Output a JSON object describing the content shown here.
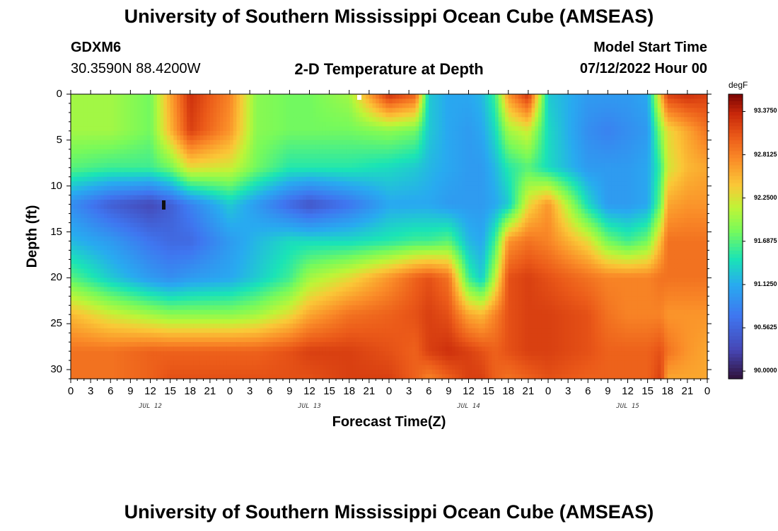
{
  "header": {
    "title_top": "University of Southern Mississippi Ocean Cube (AMSEAS)",
    "title_bottom": "University of Southern Mississippi Ocean Cube (AMSEAS)",
    "station_id": "GDXM6",
    "station_coords": "30.3590N  88.4200W",
    "model_start_label": "Model Start Time",
    "model_start_value": "07/12/2022 Hour 00"
  },
  "chart_data": {
    "type": "heatmap",
    "title": "2-D Temperature at Depth",
    "xlabel": "Forecast Time(Z)",
    "ylabel": "Depth (ft)",
    "units": "degF",
    "x_range_hours": [
      0,
      96
    ],
    "y_range_ft": [
      0,
      31
    ],
    "x_tick_labels": [
      "0",
      "3",
      "6",
      "9",
      "12",
      "15",
      "18",
      "21",
      "0",
      "3",
      "6",
      "9",
      "12",
      "15",
      "18",
      "21",
      "0",
      "3",
      "6",
      "9",
      "12",
      "15",
      "18",
      "21",
      "0",
      "3",
      "6",
      "9",
      "12",
      "15",
      "18",
      "21",
      "0"
    ],
    "y_tick_values": [
      0,
      5,
      10,
      15,
      20,
      25,
      30
    ],
    "y_tick_labels": [
      "0",
      "5",
      "10",
      "15",
      "20",
      "25",
      "30"
    ],
    "day_labels": [
      {
        "label": "JUL 12",
        "hour": 12
      },
      {
        "label": "JUL 13",
        "hour": 36
      },
      {
        "label": "JUL 14",
        "hour": 60
      },
      {
        "label": "JUL 15",
        "hour": 84
      }
    ],
    "colorbar": {
      "min": 89.9,
      "max": 93.6,
      "tick_labels": [
        "93.3750",
        "92.8125",
        "92.2500",
        "91.6875",
        "91.1250",
        "90.5625",
        "90.0000"
      ],
      "tick_values": [
        93.375,
        92.8125,
        92.25,
        91.6875,
        91.125,
        90.5625,
        90.0
      ]
    },
    "depths_ft": [
      0,
      4,
      8,
      12,
      16,
      20,
      24,
      28,
      31
    ],
    "times_h": [
      0,
      6,
      12,
      15,
      18,
      24,
      28,
      33,
      36,
      42,
      48,
      52,
      54,
      57,
      60,
      62,
      64,
      66,
      69,
      72,
      78,
      81,
      84,
      87,
      89,
      90,
      93,
      96
    ],
    "temperature_degF": [
      [
        92.0,
        92.0,
        91.8,
        92.6,
        93.3,
        92.8,
        91.9,
        91.8,
        91.8,
        92.0,
        93.3,
        93.0,
        91.3,
        91.1,
        91.1,
        91.2,
        91.6,
        92.7,
        93.3,
        91.3,
        91.0,
        91.0,
        91.0,
        91.1,
        92.5,
        93.2,
        93.3,
        93.2
      ],
      [
        92.0,
        92.0,
        91.8,
        92.5,
        93.2,
        92.7,
        91.9,
        91.8,
        91.8,
        91.8,
        91.9,
        91.8,
        91.3,
        91.1,
        91.0,
        91.1,
        91.4,
        92.0,
        92.2,
        91.4,
        90.9,
        90.8,
        90.9,
        91.0,
        91.9,
        92.3,
        92.6,
        92.9
      ],
      [
        91.7,
        91.6,
        91.6,
        91.8,
        92.3,
        92.2,
        91.8,
        91.5,
        91.5,
        91.5,
        91.4,
        91.3,
        91.2,
        91.1,
        91.0,
        91.0,
        91.2,
        91.5,
        91.7,
        91.4,
        91.0,
        91.0,
        91.0,
        91.1,
        91.6,
        92.2,
        92.5,
        92.6
      ],
      [
        90.9,
        90.5,
        90.3,
        90.5,
        90.8,
        91.3,
        91.0,
        90.6,
        90.4,
        90.7,
        91.1,
        91.1,
        91.1,
        91.0,
        91.0,
        91.0,
        91.1,
        91.3,
        92.3,
        92.7,
        91.4,
        91.0,
        91.0,
        91.1,
        91.8,
        92.6,
        92.7,
        92.7
      ],
      [
        91.2,
        91.0,
        90.7,
        90.6,
        90.6,
        91.0,
        91.2,
        91.4,
        91.4,
        91.4,
        91.5,
        91.6,
        91.6,
        91.7,
        91.2,
        91.1,
        91.6,
        92.7,
        92.9,
        92.8,
        92.3,
        91.8,
        91.6,
        91.8,
        92.5,
        92.9,
        92.9,
        92.9
      ],
      [
        91.7,
        91.3,
        91.0,
        90.9,
        91.0,
        91.1,
        91.3,
        91.6,
        92.0,
        92.3,
        92.7,
        93.0,
        93.1,
        92.9,
        91.6,
        91.3,
        92.1,
        93.1,
        93.2,
        93.1,
        92.9,
        92.8,
        92.8,
        92.8,
        92.9,
        92.9,
        92.9,
        92.9
      ],
      [
        92.5,
        92.2,
        92.0,
        91.9,
        91.9,
        91.9,
        92.0,
        92.3,
        92.6,
        92.9,
        93.0,
        93.1,
        93.2,
        93.1,
        92.6,
        92.5,
        92.8,
        93.1,
        93.2,
        93.2,
        93.1,
        92.9,
        92.8,
        92.8,
        92.8,
        92.7,
        92.7,
        92.7
      ],
      [
        92.9,
        92.9,
        93.0,
        93.0,
        93.0,
        93.0,
        93.0,
        93.1,
        93.2,
        93.2,
        93.1,
        93.0,
        93.2,
        93.3,
        93.2,
        93.1,
        93.0,
        93.1,
        93.2,
        93.2,
        93.1,
        93.0,
        93.0,
        93.0,
        93.1,
        92.9,
        92.7,
        92.6
      ],
      [
        92.9,
        92.9,
        93.0,
        93.1,
        93.1,
        93.1,
        93.1,
        93.1,
        93.1,
        93.2,
        93.2,
        93.0,
        92.8,
        93.0,
        93.2,
        93.2,
        93.0,
        92.9,
        93.0,
        93.1,
        93.0,
        93.0,
        93.0,
        93.0,
        93.2,
        92.6,
        92.6,
        92.6
      ]
    ]
  }
}
